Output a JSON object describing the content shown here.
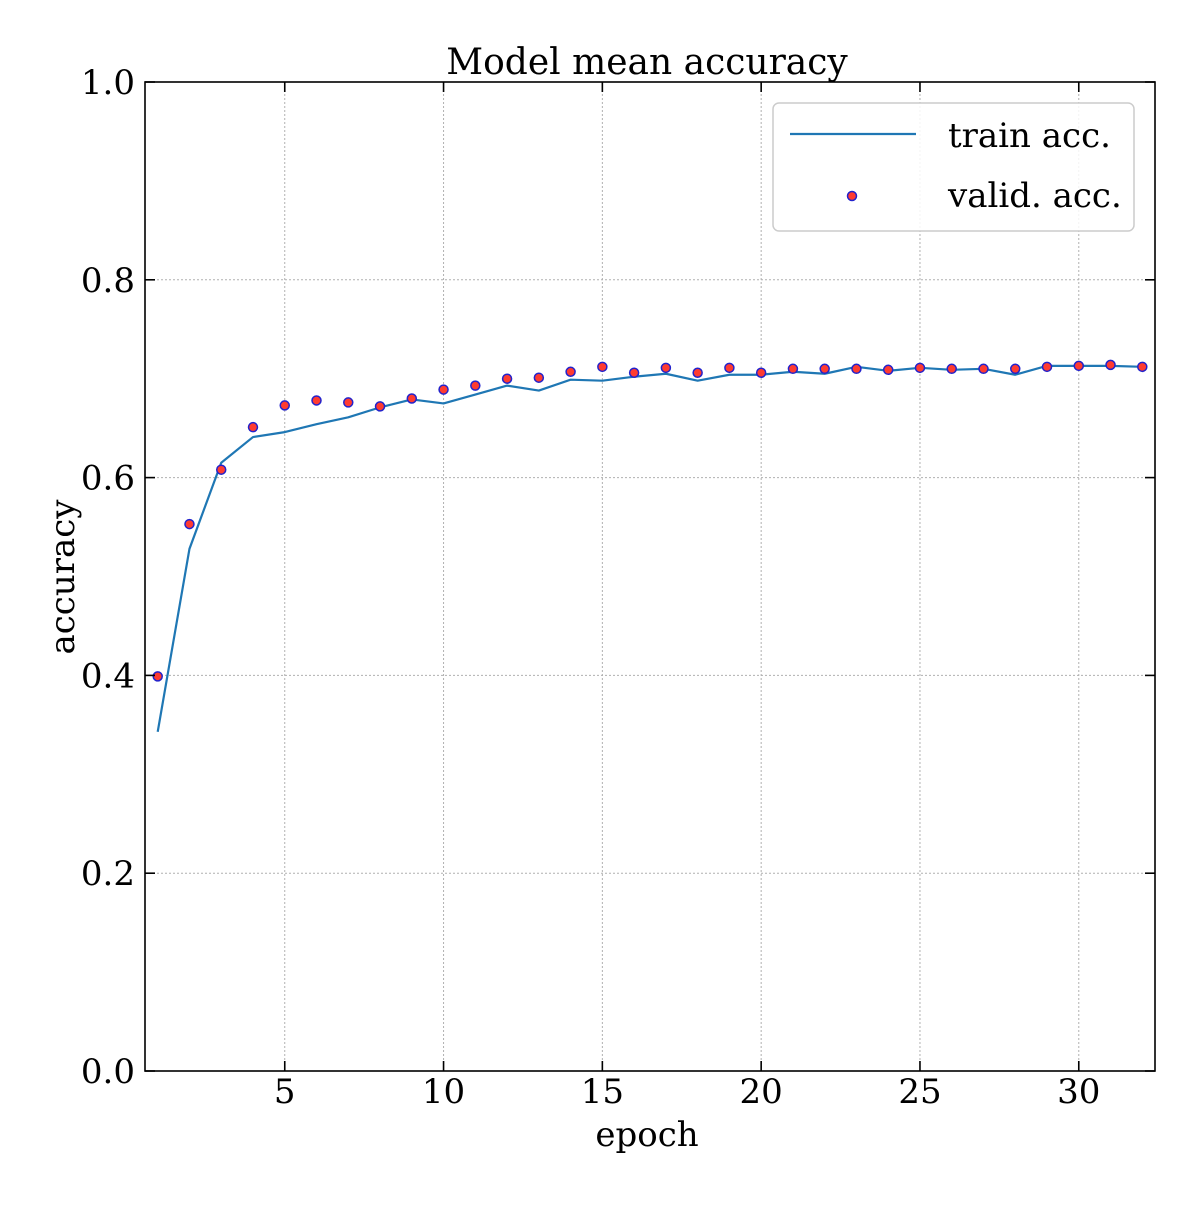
{
  "chart_data": {
    "type": "line",
    "title": "Model mean accuracy",
    "xlabel": "epoch",
    "ylabel": "accuracy",
    "xlim": [
      0.6,
      32.4
    ],
    "ylim": [
      0.0,
      1.0
    ],
    "x_ticks": [
      5,
      10,
      15,
      20,
      25,
      30
    ],
    "y_ticks": [
      0.0,
      0.2,
      0.4,
      0.6,
      0.8,
      1.0
    ],
    "x_tick_labels": [
      "5",
      "10",
      "15",
      "20",
      "25",
      "30"
    ],
    "y_tick_labels": [
      "0.0",
      "0.2",
      "0.4",
      "0.6",
      "0.8",
      "1.0"
    ],
    "grid": true,
    "legend_position": "top-right",
    "x": [
      1,
      2,
      3,
      4,
      5,
      6,
      7,
      8,
      9,
      10,
      11,
      12,
      13,
      14,
      15,
      16,
      17,
      18,
      19,
      20,
      21,
      22,
      23,
      24,
      25,
      26,
      27,
      28,
      29,
      30,
      31,
      32
    ],
    "series": [
      {
        "name": "train acc.",
        "style": "line",
        "color": "#1f77b4",
        "values": [
          0.343,
          0.528,
          0.615,
          0.641,
          0.646,
          0.654,
          0.661,
          0.671,
          0.679,
          0.675,
          0.684,
          0.693,
          0.688,
          0.699,
          0.698,
          0.702,
          0.705,
          0.698,
          0.704,
          0.704,
          0.707,
          0.705,
          0.712,
          0.708,
          0.711,
          0.709,
          0.71,
          0.704,
          0.713,
          0.713,
          0.713,
          0.712
        ]
      },
      {
        "name": "valid. acc.",
        "style": "scatter",
        "face_color": "#ff3b30",
        "edge_color": "#2222cc",
        "values": [
          0.399,
          0.553,
          0.608,
          0.651,
          0.673,
          0.678,
          0.676,
          0.672,
          0.68,
          0.689,
          0.693,
          0.7,
          0.701,
          0.707,
          0.712,
          0.706,
          0.711,
          0.706,
          0.711,
          0.706,
          0.71,
          0.71,
          0.71,
          0.709,
          0.711,
          0.71,
          0.71,
          0.71,
          0.712,
          0.713,
          0.714,
          0.712
        ]
      }
    ]
  }
}
